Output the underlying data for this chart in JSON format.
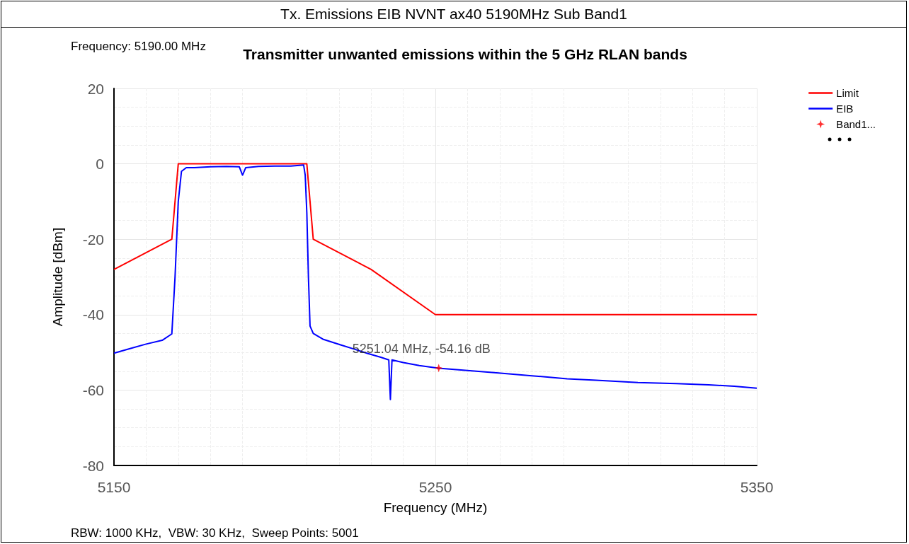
{
  "chart_data": {
    "type": "line",
    "title": "Tx. Emissions EIB NVNT ax40 5190MHz Sub Band1",
    "subtitle": "Transmitter unwanted emissions within the 5 GHz RLAN bands",
    "xlabel": "Frequency (MHz)",
    "ylabel": "Amplitude [dBm]",
    "xlim": [
      5150,
      5350
    ],
    "xticks": [
      5150,
      5250,
      5350
    ],
    "ylim": [
      -80,
      20
    ],
    "yticks": [
      -80,
      -60,
      -40,
      -20,
      0,
      20
    ],
    "grid": true,
    "legend": "top right",
    "marker": "none",
    "line_style": "solid",
    "series": [
      {
        "name": "Limit",
        "color": "#ff0000",
        "x": [
          5150,
          5168,
          5170,
          5210,
          5212,
          5230,
          5250,
          5350
        ],
        "values": [
          -28,
          -20,
          0,
          0,
          -20,
          -28,
          -40,
          -40
        ]
      },
      {
        "name": "EIB",
        "color": "#0000ff",
        "x": [
          5150,
          5155,
          5160,
          5165,
          5168,
          5169,
          5170,
          5171,
          5172.5,
          5175,
          5180,
          5185,
          5189,
          5190,
          5191,
          5195,
          5200,
          5205,
          5209,
          5209.5,
          5210,
          5210.5,
          5211,
          5212,
          5215,
          5220.5,
          5225,
          5229,
          5233,
          5235.5,
          5236,
          5236.5,
          5240,
          5245,
          5251,
          5260,
          5269,
          5280,
          5291,
          5300,
          5313,
          5325,
          5335,
          5343,
          5350
        ],
        "values": [
          -50.2,
          -49,
          -47.8,
          -46.8,
          -45.1,
          -30,
          -10,
          -2,
          -1,
          -1,
          -0.8,
          -0.7,
          -0.8,
          -3,
          -1,
          -0.7,
          -0.6,
          -0.6,
          -0.3,
          -3,
          -13,
          -30,
          -43,
          -45,
          -46.5,
          -48,
          -49.2,
          -50.3,
          -51.3,
          -52,
          -62.5,
          -52,
          -52.7,
          -53.5,
          -54.2,
          -54.8,
          -55.4,
          -56.2,
          -57,
          -57.4,
          -58,
          -58.3,
          -58.6,
          -59,
          -59.5
        ]
      },
      {
        "name": "Band1...",
        "type": "scatter",
        "color": "#ff0000",
        "marker": "star",
        "x": [
          5251.04
        ],
        "values": [
          -54.16
        ]
      }
    ],
    "annotations": [
      "Frequency: 5190.00 MHz",
      {
        "text": "5251.04 MHz, -54.16 dB",
        "x": 5251.04,
        "y": -54.16
      },
      "RBW: 1000 KHz,  VBW: 30 KHz,  Sweep Points: 5001"
    ]
  }
}
